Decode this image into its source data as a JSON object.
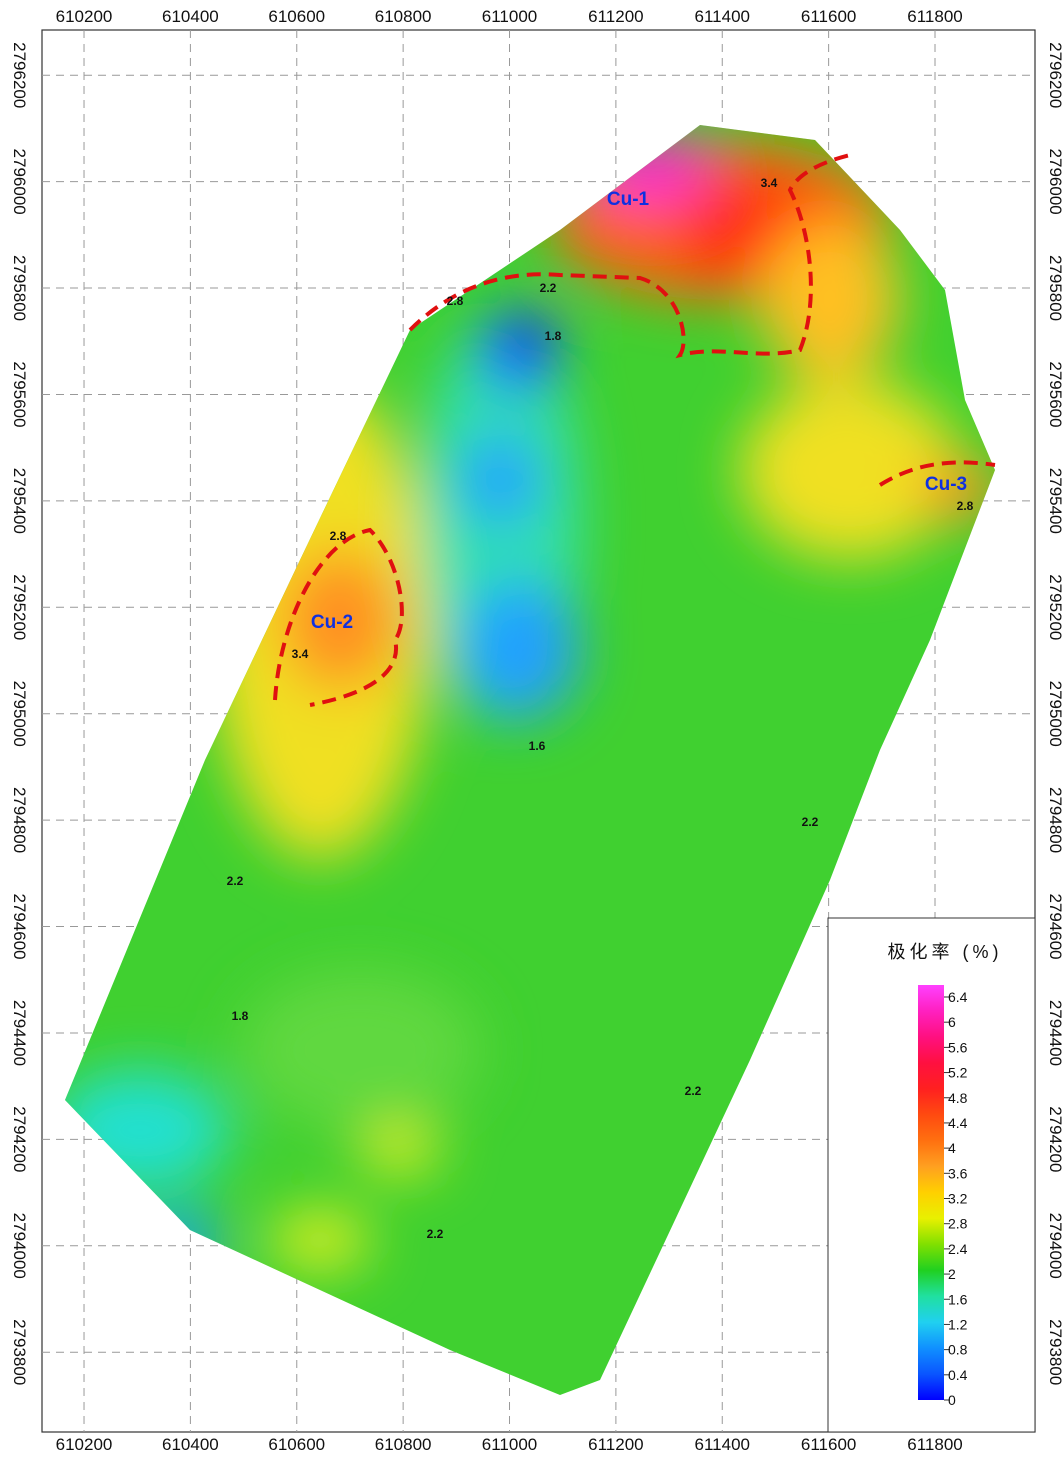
{
  "chart_data": {
    "type": "contour-map",
    "xlim": [
      610121,
      611988
    ],
    "ylim": [
      2793650,
      2796285
    ],
    "xticks": [
      610200,
      610400,
      610600,
      610800,
      611000,
      611200,
      611400,
      611600,
      611800
    ],
    "yticks": [
      2793800,
      2794000,
      2794200,
      2794400,
      2794600,
      2794800,
      2795000,
      2795200,
      2795400,
      2795600,
      2795800,
      2796000,
      2796200
    ],
    "grid": true,
    "anomalies": [
      "Cu-1",
      "Cu-2",
      "Cu-3"
    ],
    "contour_labels": [
      2.8,
      2.2,
      1.8,
      3.4,
      2.8,
      2.2,
      1.8,
      2.2,
      2.2,
      2.2,
      1.6,
      2.8,
      3.4
    ],
    "legend": {
      "title": "极化率 (%)",
      "ticks": [
        0,
        0.4,
        0.8,
        1.2,
        1.6,
        2,
        2.4,
        2.8,
        3.2,
        3.6,
        4,
        4.4,
        4.8,
        5.2,
        5.6,
        6,
        6.4
      ],
      "colors": [
        "#0000ff",
        "#0a55ff",
        "#1090ff",
        "#20d0f0",
        "#20e0a0",
        "#20d020",
        "#80e000",
        "#e8f000",
        "#ffd000",
        "#ffa020",
        "#ff7010",
        "#ff4a10",
        "#ff2020",
        "#ff1040",
        "#ff1080",
        "#ff20c0",
        "#ff40ff"
      ]
    }
  }
}
